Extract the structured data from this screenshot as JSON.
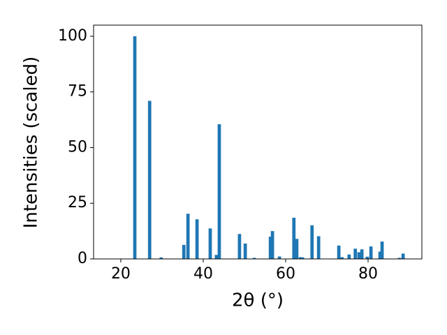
{
  "chart_data": {
    "type": "bar",
    "x_label": "2θ (°)",
    "y_label": "Intensities (scaled)",
    "color": "#1f77b4",
    "x": [
      23.4,
      27.0,
      29.8,
      35.3,
      36.3,
      38.5,
      41.7,
      43.2,
      43.9,
      48.8,
      50.2,
      52.4,
      56.3,
      56.8,
      58.5,
      62.0,
      62.7,
      63.6,
      64.1,
      66.4,
      68.0,
      72.9,
      73.7,
      75.4,
      76.9,
      77.8,
      78.5,
      79.8,
      80.7,
      82.9,
      83.4,
      87.6,
      88.5
    ],
    "values": [
      100,
      71,
      0.7,
      6.3,
      20.3,
      17.8,
      13.7,
      1.8,
      60.5,
      11.2,
      6.9,
      0.5,
      10,
      12.5,
      1.1,
      18.5,
      9,
      0.8,
      0.7,
      15.1,
      10.2,
      6,
      0.8,
      2,
      4.6,
      3,
      4.3,
      1,
      5.6,
      3.3,
      7.8,
      0.5,
      2.4
    ],
    "xlim": [
      13.4,
      93.05
    ],
    "ylim": [
      0,
      105
    ],
    "xticks": [
      20,
      40,
      60,
      80
    ],
    "yticks": [
      0,
      25,
      50,
      75,
      100
    ]
  }
}
